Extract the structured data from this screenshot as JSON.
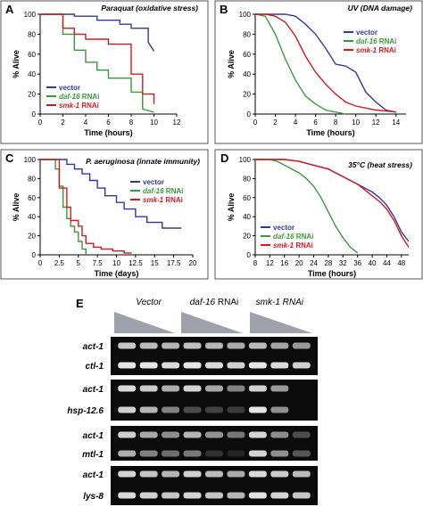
{
  "colors": {
    "vector": "#2e3b9e",
    "daf16": "#3a9a3a",
    "smk1": "#d6191e",
    "frame": "#555555",
    "gel_bg": "#0b0b0b",
    "band": "#e6e6e6",
    "wedge": "#9da2aa"
  },
  "chart_data": [
    {
      "panel": "A",
      "type": "line",
      "step": true,
      "title": "Paraquat (oxidative stress)",
      "xlabel": "Time (hours)",
      "ylabel": "% Alive",
      "xlim": [
        0,
        12
      ],
      "ylim": [
        0,
        100
      ],
      "xticks": [
        0,
        2,
        4,
        6,
        8,
        10,
        12
      ],
      "yticks": [
        0,
        20,
        40,
        60,
        80,
        100
      ],
      "legend": "bottom-left",
      "series": [
        {
          "name": "vector",
          "italic_word": "",
          "suffix": "",
          "color": "#2e3b9e",
          "x": [
            0,
            3,
            3,
            5,
            5,
            7,
            7,
            8,
            8,
            9.5,
            9.5,
            10
          ],
          "y": [
            100,
            100,
            98,
            98,
            94,
            94,
            90,
            90,
            86,
            86,
            72,
            63
          ]
        },
        {
          "name": "daf-16 RNAi",
          "italic_word": "daf-16",
          "suffix": " RNAi",
          "color": "#3a9a3a",
          "x": [
            0,
            2,
            2,
            3,
            3,
            4,
            4,
            5,
            5,
            6,
            6,
            8,
            8,
            9,
            9,
            10
          ],
          "y": [
            100,
            100,
            80,
            80,
            64,
            64,
            52,
            52,
            44,
            44,
            36,
            36,
            22,
            22,
            5,
            2
          ]
        },
        {
          "name": "smk-1 RNAi",
          "italic_word": "smk-1",
          "suffix": " RNAi",
          "color": "#d6191e",
          "x": [
            0,
            2,
            2,
            3,
            3,
            4,
            4,
            6,
            6,
            8,
            8,
            9,
            9,
            10,
            10
          ],
          "y": [
            100,
            100,
            86,
            86,
            80,
            80,
            75,
            75,
            70,
            70,
            40,
            40,
            20,
            20,
            10
          ]
        }
      ]
    },
    {
      "panel": "B",
      "type": "line",
      "step": false,
      "title": "UV (DNA damage)",
      "xlabel": "Time (hours)",
      "ylabel": "% Alive",
      "xlim": [
        0,
        15
      ],
      "ylim": [
        0,
        100
      ],
      "xticks": [
        0,
        2,
        4,
        6,
        8,
        10,
        12,
        14
      ],
      "yticks": [
        0,
        20,
        40,
        60,
        80,
        100
      ],
      "legend": "top-right",
      "series": [
        {
          "name": "vector",
          "italic_word": "",
          "suffix": "",
          "color": "#2e3b9e",
          "x": [
            0,
            2,
            3,
            4,
            5,
            6,
            7,
            8,
            9,
            10,
            11,
            12,
            13,
            14
          ],
          "y": [
            100,
            100,
            100,
            98,
            90,
            80,
            66,
            50,
            48,
            42,
            22,
            12,
            4,
            2
          ]
        },
        {
          "name": "daf-16 RNAi",
          "italic_word": "daf-16",
          "suffix": " RNAi",
          "color": "#3a9a3a",
          "x": [
            0,
            1,
            2,
            3,
            4,
            5,
            6,
            7,
            8,
            9
          ],
          "y": [
            100,
            98,
            80,
            55,
            34,
            18,
            10,
            4,
            2,
            0
          ]
        },
        {
          "name": "smk-1 RNAi",
          "italic_word": "smk-1",
          "suffix": " RNAi",
          "color": "#d6191e",
          "x": [
            0,
            1,
            2,
            3,
            4,
            5,
            6,
            7,
            8,
            9,
            10,
            11,
            12,
            13,
            14
          ],
          "y": [
            100,
            100,
            98,
            92,
            78,
            58,
            42,
            30,
            20,
            12,
            8,
            6,
            4,
            3,
            2
          ]
        }
      ]
    },
    {
      "panel": "C",
      "type": "line",
      "step": true,
      "title": "P. aeruginosa (innate immunity)",
      "xlabel": "Time (days)",
      "ylabel": "% Alive",
      "xlim": [
        0,
        20
      ],
      "ylim": [
        0,
        100
      ],
      "xticks": [
        0,
        2.5,
        5,
        7.5,
        10,
        12.5,
        15,
        17.5,
        20
      ],
      "yticks": [
        0,
        20,
        40,
        60,
        80,
        100
      ],
      "legend": "top-right",
      "series": [
        {
          "name": "vector",
          "italic_word": "",
          "suffix": "",
          "color": "#2e3b9e",
          "x": [
            0,
            3.5,
            3.5,
            4.5,
            4.5,
            5.5,
            5.5,
            6.5,
            6.5,
            7.5,
            7.5,
            8.5,
            8.5,
            10,
            10,
            11,
            11,
            12.5,
            12.5,
            14,
            14,
            16,
            16,
            18.5
          ],
          "y": [
            100,
            100,
            95,
            95,
            90,
            90,
            85,
            85,
            78,
            78,
            70,
            70,
            62,
            62,
            55,
            55,
            48,
            48,
            40,
            40,
            34,
            34,
            28,
            28
          ]
        },
        {
          "name": "daf-16 RNAi",
          "italic_word": "daf-16",
          "suffix": " RNAi",
          "color": "#3a9a3a",
          "x": [
            0,
            2,
            2,
            2.5,
            2.5,
            3,
            3,
            3.5,
            3.5,
            4,
            4,
            4.5,
            4.5,
            5,
            5,
            5.5,
            5.5,
            6,
            6
          ],
          "y": [
            100,
            100,
            90,
            90,
            72,
            72,
            50,
            50,
            38,
            38,
            30,
            30,
            24,
            24,
            14,
            14,
            6,
            6,
            0
          ]
        },
        {
          "name": "smk-1 RNAi",
          "italic_word": "smk-1",
          "suffix": " RNAi",
          "color": "#d6191e",
          "x": [
            0,
            2.5,
            2.5,
            3.5,
            3.5,
            4,
            4,
            5,
            5,
            5.5,
            5.5,
            6,
            6,
            7,
            7,
            8,
            8,
            9.5,
            9.5,
            11,
            11,
            12
          ],
          "y": [
            100,
            100,
            70,
            70,
            50,
            50,
            36,
            36,
            30,
            30,
            20,
            20,
            12,
            12,
            8,
            8,
            6,
            6,
            4,
            4,
            2,
            2
          ]
        }
      ]
    },
    {
      "panel": "D",
      "type": "line",
      "step": false,
      "title": "35°C (heat stress)",
      "xlabel": "Time (hours)",
      "ylabel": "% Alive",
      "xlim": [
        8,
        50
      ],
      "ylim": [
        0,
        100
      ],
      "xticks": [
        8,
        12,
        16,
        20,
        24,
        28,
        32,
        36,
        40,
        44,
        48
      ],
      "yticks": [
        0,
        20,
        40,
        60,
        80,
        100
      ],
      "legend": "bottom-left",
      "series": [
        {
          "name": "vector",
          "italic_word": "",
          "suffix": "",
          "color": "#2e3b9e",
          "x": [
            8,
            12,
            14,
            16,
            18,
            20,
            22,
            24,
            26,
            28,
            30,
            32,
            34,
            36,
            38,
            40,
            42,
            44,
            46,
            48,
            50
          ],
          "y": [
            100,
            100,
            100,
            100,
            99,
            98,
            96,
            94,
            92,
            90,
            86,
            82,
            78,
            74,
            70,
            66,
            60,
            52,
            40,
            24,
            14
          ]
        },
        {
          "name": "daf-16 RNAi",
          "italic_word": "daf-16",
          "suffix": " RNAi",
          "color": "#3a9a3a",
          "x": [
            8,
            12,
            14,
            16,
            18,
            20,
            22,
            24,
            26,
            28,
            30,
            32,
            34,
            36
          ],
          "y": [
            100,
            100,
            98,
            94,
            90,
            86,
            80,
            72,
            60,
            45,
            30,
            18,
            8,
            2
          ]
        },
        {
          "name": "smk-1 RNAi",
          "italic_word": "smk-1",
          "suffix": " RNAi",
          "color": "#d6191e",
          "x": [
            8,
            12,
            14,
            16,
            18,
            20,
            22,
            24,
            26,
            28,
            30,
            32,
            34,
            36,
            38,
            40,
            42,
            44,
            46,
            48,
            50
          ],
          "y": [
            100,
            100,
            100,
            100,
            99,
            98,
            96,
            94,
            92,
            90,
            86,
            82,
            78,
            74,
            68,
            62,
            56,
            48,
            36,
            20,
            8
          ]
        }
      ]
    },
    {
      "panel": "E",
      "type": "gel",
      "column_groups": [
        {
          "label": "Vector",
          "italic": true,
          "suffix": ""
        },
        {
          "label": "daf-16",
          "italic": true,
          "suffix": " RNAi"
        },
        {
          "label": "smk-1 RNAi",
          "italic": true,
          "suffix": ""
        }
      ],
      "blocks": [
        {
          "rows": [
            {
              "label": "act-1",
              "intensity": [
                0.85,
                0.8,
                0.78,
                0.82,
                0.78,
                0.72,
                0.8,
                0.7,
                0.65
              ]
            },
            {
              "label": "ctl-1",
              "intensity": [
                1.0,
                1.0,
                0.95,
                1.0,
                0.95,
                0.9,
                1.0,
                0.95,
                0.9
              ]
            }
          ]
        },
        {
          "rows": [
            {
              "label": "act-1",
              "intensity": [
                0.95,
                0.88,
                0.75,
                0.92,
                0.72,
                0.55,
                0.9,
                0.65,
                0.0
              ]
            },
            {
              "label": "hsp-12.6",
              "intensity": [
                0.9,
                0.78,
                0.55,
                0.3,
                0.25,
                0.22,
                1.0,
                0.6,
                0.0
              ]
            }
          ]
        },
        {
          "rows": [
            {
              "label": "act-1",
              "intensity": [
                0.9,
                0.72,
                0.6,
                0.78,
                0.62,
                0.5,
                0.92,
                0.6,
                0.3
              ]
            },
            {
              "label": "mtl-1",
              "intensity": [
                0.75,
                0.55,
                0.45,
                0.5,
                0.18,
                0.12,
                0.92,
                0.6,
                0.35
              ]
            }
          ]
        },
        {
          "rows": [
            {
              "label": "act-1",
              "intensity": [
                0.92,
                0.85,
                0.78,
                0.9,
                0.8,
                0.72,
                0.95,
                0.88,
                0.8
              ]
            },
            {
              "label": "lys-8",
              "intensity": [
                0.95,
                0.9,
                0.85,
                0.92,
                0.85,
                0.78,
                0.98,
                0.92,
                0.85
              ]
            }
          ]
        }
      ]
    }
  ]
}
